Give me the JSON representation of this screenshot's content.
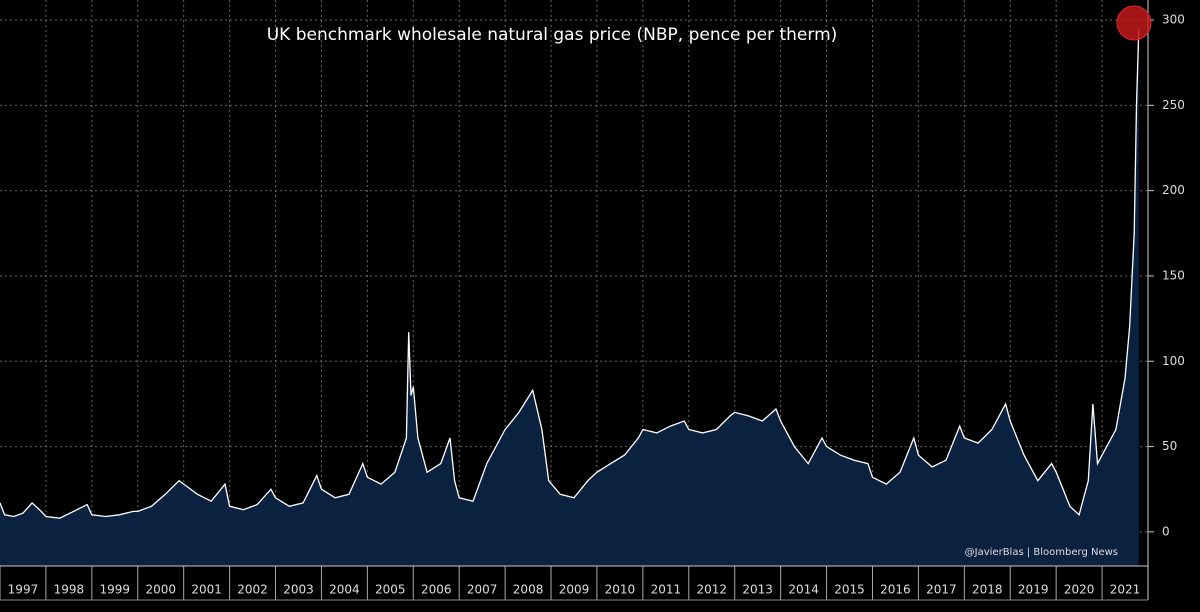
{
  "chart_data": {
    "type": "area",
    "title": "UK benchmark wholesale natural gas price (NBP, pence per therm)",
    "credit": "@JavierBlas | Bloomberg News",
    "x": [
      1997.0,
      1997.1,
      1997.3,
      1997.5,
      1997.7,
      1997.9,
      1998.0,
      1998.3,
      1998.6,
      1998.9,
      1999.0,
      1999.3,
      1999.6,
      1999.9,
      2000.0,
      2000.3,
      2000.6,
      2000.9,
      2001.0,
      2001.3,
      2001.6,
      2001.9,
      2002.0,
      2002.3,
      2002.6,
      2002.9,
      2003.0,
      2003.3,
      2003.6,
      2003.9,
      2004.0,
      2004.3,
      2004.6,
      2004.9,
      2005.0,
      2005.3,
      2005.6,
      2005.85,
      2005.9,
      2005.95,
      2006.0,
      2006.1,
      2006.3,
      2006.6,
      2006.8,
      2006.9,
      2007.0,
      2007.3,
      2007.6,
      2007.9,
      2008.0,
      2008.3,
      2008.6,
      2008.8,
      2008.95,
      2009.2,
      2009.5,
      2009.8,
      2010.0,
      2010.3,
      2010.6,
      2010.9,
      2011.0,
      2011.3,
      2011.6,
      2011.9,
      2012.0,
      2012.3,
      2012.6,
      2012.9,
      2013.0,
      2013.3,
      2013.6,
      2013.9,
      2014.0,
      2014.3,
      2014.6,
      2014.9,
      2015.0,
      2015.3,
      2015.6,
      2015.9,
      2016.0,
      2016.3,
      2016.6,
      2016.9,
      2017.0,
      2017.3,
      2017.6,
      2017.9,
      2018.0,
      2018.3,
      2018.6,
      2018.9,
      2019.0,
      2019.3,
      2019.6,
      2019.9,
      2020.0,
      2020.3,
      2020.5,
      2020.7,
      2020.8,
      2020.9,
      2021.0,
      2021.3,
      2021.5,
      2021.6,
      2021.7,
      2021.75,
      2021.8
    ],
    "values": [
      17,
      10,
      9,
      11,
      17,
      12,
      9,
      8,
      12,
      16,
      10,
      9,
      10,
      12,
      12,
      15,
      22,
      30,
      28,
      22,
      18,
      28,
      15,
      13,
      16,
      25,
      20,
      15,
      17,
      33,
      25,
      20,
      22,
      40,
      32,
      28,
      35,
      55,
      117,
      80,
      85,
      55,
      35,
      40,
      55,
      30,
      20,
      18,
      40,
      55,
      60,
      70,
      83,
      60,
      30,
      22,
      20,
      30,
      35,
      40,
      45,
      55,
      60,
      58,
      62,
      65,
      60,
      58,
      60,
      68,
      70,
      68,
      65,
      72,
      65,
      50,
      40,
      55,
      50,
      45,
      42,
      40,
      32,
      28,
      35,
      55,
      45,
      38,
      42,
      62,
      55,
      52,
      60,
      75,
      65,
      45,
      30,
      40,
      35,
      15,
      10,
      30,
      75,
      40,
      45,
      60,
      90,
      120,
      175,
      250,
      295
    ],
    "color": "#ffffff",
    "fill": "#0b2140",
    "xlim": [
      1997,
      2022
    ],
    "xticks": [
      1997,
      1998,
      1999,
      2000,
      2001,
      2002,
      2003,
      2004,
      2005,
      2006,
      2007,
      2008,
      2009,
      2010,
      2011,
      2012,
      2013,
      2014,
      2015,
      2016,
      2017,
      2018,
      2019,
      2020,
      2021
    ],
    "ylim": [
      -20,
      300
    ],
    "yticks": [
      0,
      50,
      100,
      150,
      200,
      250,
      300
    ],
    "grid": true
  }
}
